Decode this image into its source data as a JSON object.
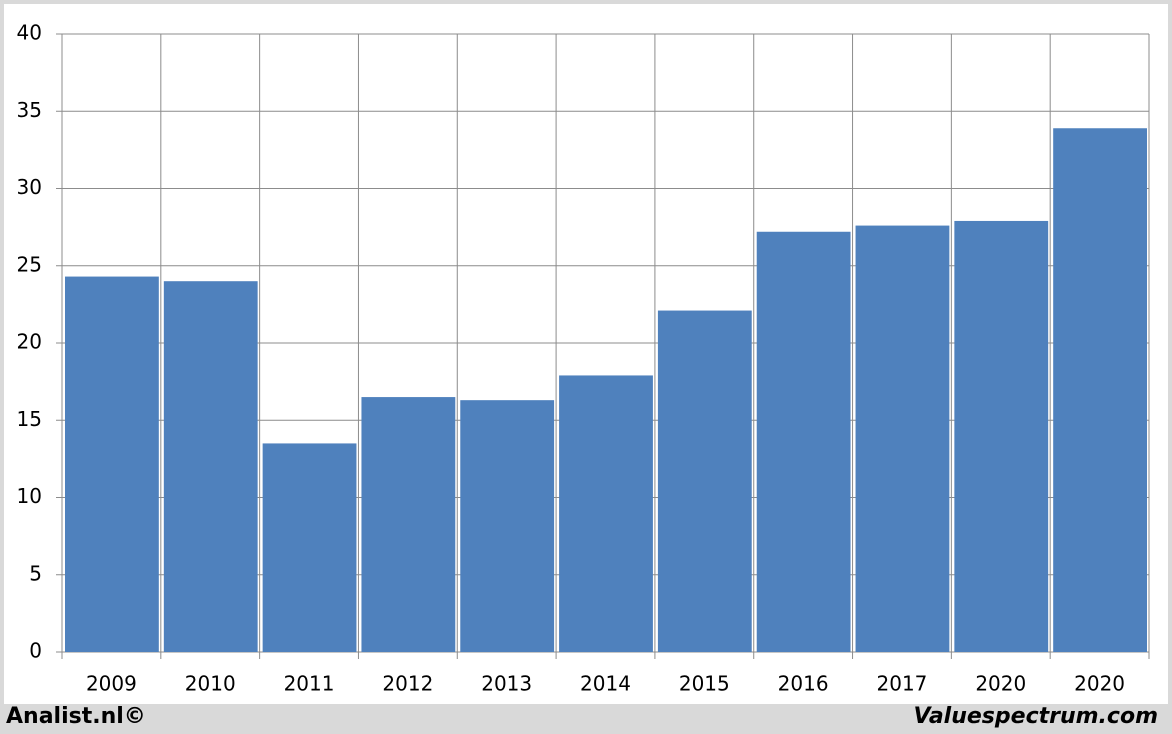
{
  "chart_data": {
    "type": "bar",
    "categories": [
      "2009",
      "2010",
      "2011",
      "2012",
      "2013",
      "2014",
      "2015",
      "2016",
      "2017",
      "2020",
      "2020"
    ],
    "values": [
      24.3,
      24.0,
      13.5,
      16.5,
      16.3,
      17.9,
      22.1,
      27.2,
      27.6,
      27.9,
      33.9
    ],
    "color": "#4f81bd",
    "ylim": [
      0,
      40
    ],
    "yticks": [
      0,
      5,
      10,
      15,
      20,
      25,
      30,
      35,
      40
    ],
    "grid": true,
    "credits": [
      "Analist.nl©",
      "Valuespectrum.com"
    ]
  }
}
